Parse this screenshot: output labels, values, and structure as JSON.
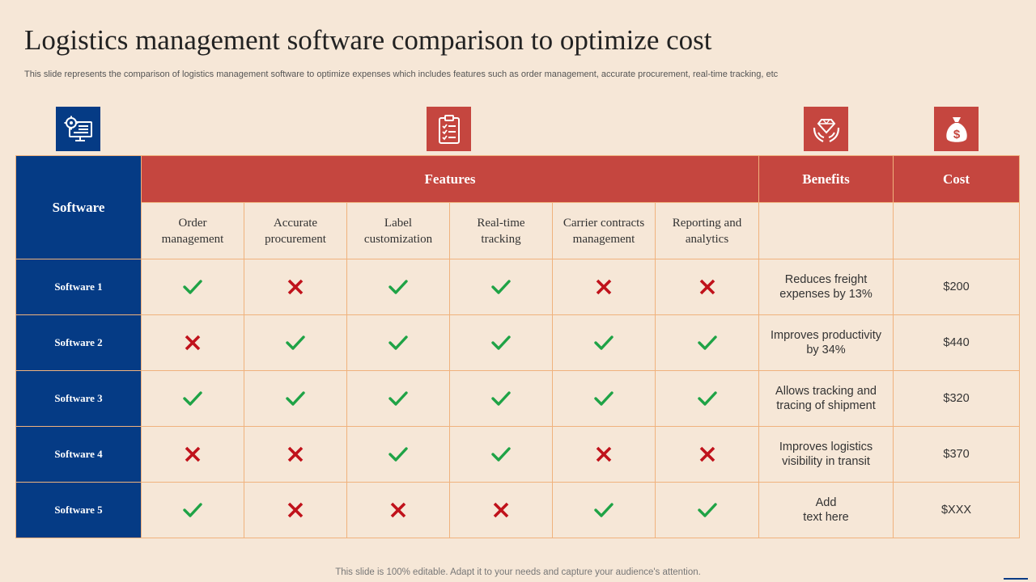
{
  "title": "Logistics management software comparison to optimize cost",
  "subtitle": "This slide represents the comparison of logistics management software to optimize expenses which includes features such as order management, accurate procurement, real-time tracking, etc",
  "icons": {
    "software": "monitor-gear-icon",
    "features": "clipboard-checklist-icon",
    "benefits": "hands-diamond-icon",
    "cost": "money-bag-icon"
  },
  "colors": {
    "blue": "#053b85",
    "red": "#c5463f",
    "check": "#1fa346",
    "cross": "#c0121b",
    "background": "#f6e7d7"
  },
  "headers": {
    "software": "Software",
    "features": "Features",
    "benefits": "Benefits",
    "cost": "Cost"
  },
  "features": [
    {
      "line1": "Order",
      "line2": "management"
    },
    {
      "line1": "Accurate",
      "line2": "procurement"
    },
    {
      "line1": "Label",
      "line2": "customization"
    },
    {
      "line1": "Real-time",
      "line2": "tracking"
    },
    {
      "line1": "Carrier contracts",
      "line2": "management"
    },
    {
      "line1": "Reporting and",
      "line2": "analytics"
    }
  ],
  "rows": [
    {
      "name": "Software 1",
      "marks": [
        "check",
        "cross",
        "check",
        "check",
        "cross",
        "cross"
      ],
      "benefit_line1": "Reduces freight",
      "benefit_line2": "expenses by 13%",
      "cost": "$200"
    },
    {
      "name": "Software 2",
      "marks": [
        "cross",
        "check",
        "check",
        "check",
        "check",
        "check"
      ],
      "benefit_line1": "Improves productivity",
      "benefit_line2": "by 34%",
      "cost": "$440"
    },
    {
      "name": "Software 3",
      "marks": [
        "check",
        "check",
        "check",
        "check",
        "check",
        "check"
      ],
      "benefit_line1": "Allows tracking and",
      "benefit_line2": "tracing of shipment",
      "cost": "$320"
    },
    {
      "name": "Software 4",
      "marks": [
        "cross",
        "cross",
        "check",
        "check",
        "cross",
        "cross"
      ],
      "benefit_line1": "Improves logistics",
      "benefit_line2": "visibility in transit",
      "cost": "$370"
    },
    {
      "name": "Software 5",
      "marks": [
        "check",
        "cross",
        "cross",
        "cross",
        "check",
        "check"
      ],
      "benefit_line1": "Add",
      "benefit_line2": "text here",
      "cost": "$XXX"
    }
  ],
  "footer": "This slide is 100% editable. Adapt it to your needs and capture your audience's attention."
}
